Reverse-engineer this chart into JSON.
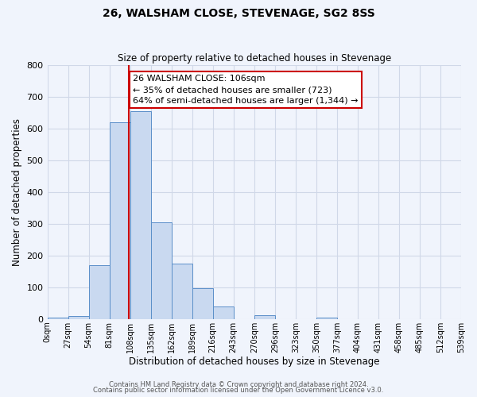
{
  "title": "26, WALSHAM CLOSE, STEVENAGE, SG2 8SS",
  "subtitle": "Size of property relative to detached houses in Stevenage",
  "xlabel": "Distribution of detached houses by size in Stevenage",
  "ylabel": "Number of detached properties",
  "bin_edges": [
    0,
    27,
    54,
    81,
    108,
    135,
    162,
    189,
    216,
    243,
    270,
    297,
    324,
    351,
    378,
    405,
    432,
    459,
    486,
    513,
    540
  ],
  "bin_labels": [
    "0sqm",
    "27sqm",
    "54sqm",
    "81sqm",
    "108sqm",
    "135sqm",
    "162sqm",
    "189sqm",
    "216sqm",
    "243sqm",
    "270sqm",
    "296sqm",
    "323sqm",
    "350sqm",
    "377sqm",
    "404sqm",
    "431sqm",
    "458sqm",
    "485sqm",
    "512sqm",
    "539sqm"
  ],
  "counts": [
    5,
    10,
    170,
    620,
    655,
    305,
    175,
    97,
    40,
    0,
    13,
    0,
    0,
    4,
    0,
    0,
    0,
    0,
    0,
    0
  ],
  "bar_facecolor": "#c9d9f0",
  "bar_edgecolor": "#5b8fc9",
  "property_line_x": 106,
  "property_line_color": "#cc0000",
  "ylim": [
    0,
    800
  ],
  "yticks": [
    0,
    100,
    200,
    300,
    400,
    500,
    600,
    700,
    800
  ],
  "annotation_line1": "26 WALSHAM CLOSE: 106sqm",
  "annotation_line2": "← 35% of detached houses are smaller (723)",
  "annotation_line3": "64% of semi-detached houses are larger (1,344) →",
  "annotation_box_color": "#cc0000",
  "grid_color": "#d0d8e8",
  "background_color": "#f0f4fc",
  "footer_line1": "Contains HM Land Registry data © Crown copyright and database right 2024.",
  "footer_line2": "Contains public sector information licensed under the Open Government Licence v3.0."
}
